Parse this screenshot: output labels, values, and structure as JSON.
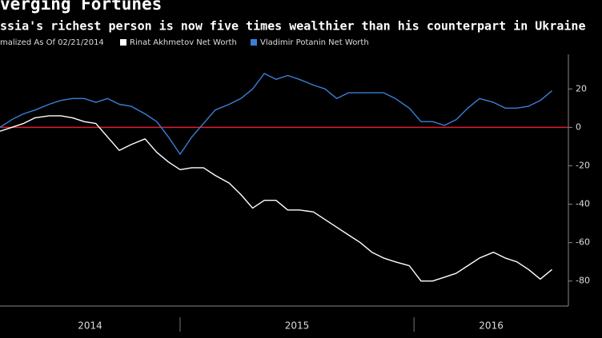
{
  "chart_data": {
    "type": "line",
    "title": "verging Fortunes",
    "subtitle": "ssia's richest person is now five times wealthier than his counterpart in Ukraine",
    "legend_note": "malized As Of 02/21/2014",
    "x": [
      2014.23,
      2014.28,
      2014.33,
      2014.38,
      2014.44,
      2014.49,
      2014.54,
      2014.59,
      2014.64,
      2014.69,
      2014.74,
      2014.79,
      2014.85,
      2014.9,
      2014.95,
      2015.0,
      2015.05,
      2015.1,
      2015.15,
      2015.21,
      2015.26,
      2015.31,
      2015.36,
      2015.41,
      2015.46,
      2015.51,
      2015.57,
      2015.62,
      2015.67,
      2015.72,
      2015.77,
      2015.82,
      2015.87,
      2015.92,
      2015.98,
      2016.03,
      2016.08,
      2016.13,
      2016.18,
      2016.23,
      2016.28,
      2016.34,
      2016.39,
      2016.44,
      2016.49,
      2016.54,
      2016.59
    ],
    "series": [
      {
        "name": "Rinat Akhmetov Net Worth",
        "color": "#ffffff",
        "values": [
          -2,
          0,
          2,
          5,
          6,
          6,
          5,
          3,
          2,
          -5,
          -12,
          -9,
          -6,
          -13,
          -18,
          -22,
          -21,
          -21,
          -25,
          -29,
          -35,
          -42,
          -38,
          -38,
          -43,
          -43,
          -44,
          -48,
          -52,
          -56,
          -60,
          -65,
          -68,
          -70,
          -72,
          -80,
          -80,
          -78,
          -76,
          -72,
          -68,
          -65,
          -68,
          -70,
          -74,
          -79,
          -74
        ]
      },
      {
        "name": "Vladimir Potanin Net Worth",
        "color": "#3a7fd9",
        "values": [
          0,
          4,
          7,
          9,
          12,
          14,
          15,
          15,
          13,
          15,
          12,
          11,
          7,
          3,
          -5,
          -14,
          -5,
          2,
          9,
          12,
          15,
          20,
          28,
          25,
          27,
          25,
          22,
          20,
          15,
          18,
          18,
          18,
          18,
          15,
          10,
          3,
          3,
          1,
          4,
          10,
          15,
          13,
          10,
          10,
          11,
          14,
          19
        ]
      }
    ],
    "reference_line": {
      "value": 0,
      "color": "#e0202a"
    },
    "xlim": [
      2014.23,
      2016.66
    ],
    "xticks": [
      {
        "value": 2014,
        "label": "2014"
      },
      {
        "value": 2015,
        "label": "2015"
      },
      {
        "value": 2016,
        "label": "2016"
      }
    ],
    "ylim": [
      -93,
      38
    ],
    "yticks": [
      20,
      0,
      -20,
      -40,
      -60,
      -80
    ],
    "y_axis_side": "right"
  }
}
